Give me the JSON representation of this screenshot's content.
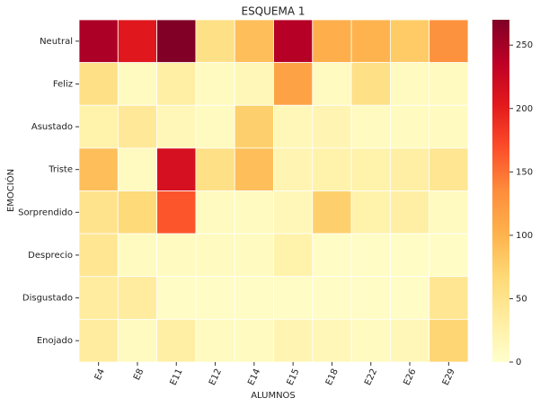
{
  "chart_data": {
    "type": "heatmap",
    "title": "ESQUEMA 1",
    "x_label": "ALUMNOS",
    "y_label": "EMOCIÓN",
    "categories": [
      "E4",
      "E8",
      "E11",
      "E12",
      "E14",
      "E15",
      "E18",
      "E22",
      "E26",
      "E29"
    ],
    "rows": [
      "Neutral",
      "Feliz",
      "Asustado",
      "Triste",
      "Sorprendido",
      "Desprecio",
      "Disgustado",
      "Enojado"
    ],
    "values": [
      [
        245,
        205,
        270,
        55,
        90,
        240,
        105,
        100,
        80,
        130
      ],
      [
        55,
        10,
        30,
        10,
        15,
        115,
        10,
        55,
        10,
        10
      ],
      [
        25,
        40,
        15,
        10,
        75,
        15,
        20,
        10,
        10,
        10
      ],
      [
        90,
        10,
        215,
        55,
        90,
        20,
        25,
        25,
        30,
        45
      ],
      [
        50,
        65,
        165,
        10,
        10,
        15,
        75,
        25,
        30,
        10
      ],
      [
        45,
        10,
        10,
        10,
        10,
        25,
        5,
        5,
        5,
        5
      ],
      [
        35,
        35,
        5,
        5,
        5,
        5,
        5,
        5,
        5,
        45
      ],
      [
        35,
        10,
        30,
        10,
        10,
        20,
        15,
        10,
        15,
        70
      ]
    ],
    "colormap": "YlOrRd",
    "clim": [
      0,
      270
    ],
    "cticks": [
      0,
      50,
      100,
      150,
      200,
      250
    ]
  }
}
